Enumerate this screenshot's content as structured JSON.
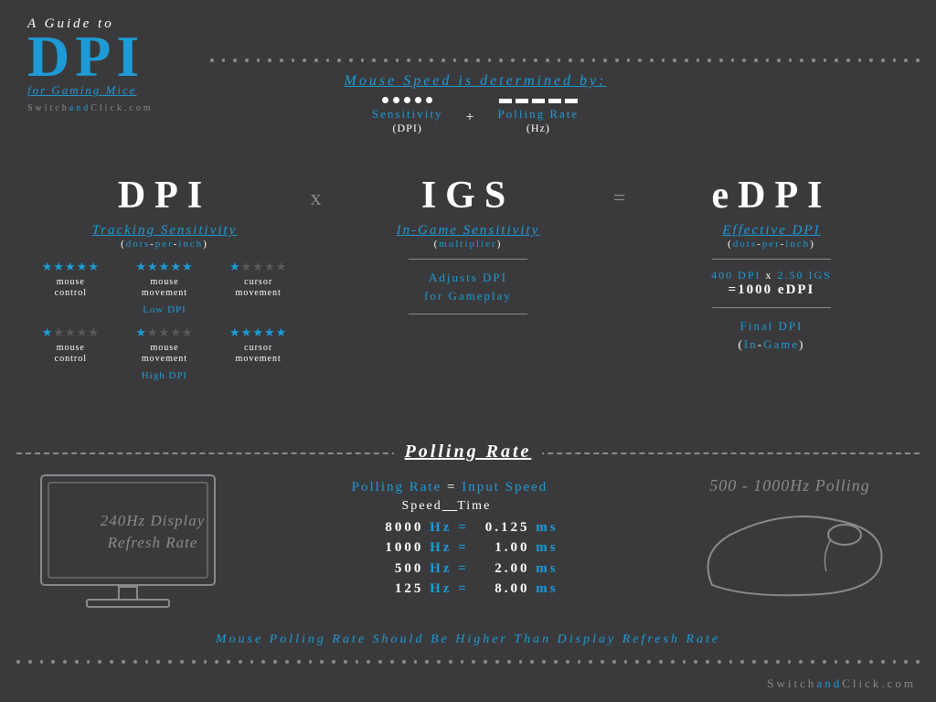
{
  "colors": {
    "bg": "#3a3a3c",
    "blue": "#1e9bd6",
    "gray": "#8a8a8d",
    "white": "#ffffff",
    "star_empty": "#5a5a5d"
  },
  "header": {
    "pre": "A Guide to",
    "title": "DPI",
    "sub": "for Gaming Mice",
    "site_a": "Switch",
    "site_b": "and",
    "site_c": "Click.com"
  },
  "mspeed": {
    "title": "Mouse Speed is determined by:",
    "left_label": "Sensitivity",
    "left_paren": "(DPI)",
    "plus": "+",
    "right_label": "Polling Rate",
    "right_paren": "(Hz)"
  },
  "formula": {
    "dpi": {
      "big": "DPI",
      "sub": "Tracking Sensitivity",
      "par_l": "(",
      "par_a": "dots",
      "par_s1": "-",
      "par_b": "per",
      "par_s2": "-",
      "par_c": "inch",
      "par_r": ")",
      "grid": {
        "row1": [
          {
            "filled": 5,
            "empty": 0,
            "t1": "mouse",
            "t2": "control"
          },
          {
            "filled": 5,
            "empty": 0,
            "t1": "mouse",
            "t2": "movement"
          },
          {
            "filled": 1,
            "empty": 4,
            "t1": "cursor",
            "t2": "movement"
          }
        ],
        "label1": "Low DPI",
        "row2": [
          {
            "filled": 1,
            "empty": 4,
            "t1": "mouse",
            "t2": "control"
          },
          {
            "filled": 1,
            "empty": 4,
            "t1": "mouse",
            "t2": "movement"
          },
          {
            "filled": 5,
            "empty": 0,
            "t1": "cursor",
            "t2": "movement"
          }
        ],
        "label2": "High DPI"
      }
    },
    "op1": "x",
    "igs": {
      "big": "IGS",
      "sub": "In-Game Sensitivity",
      "par": "(",
      "par_a": "multiplier",
      "par_r": ")",
      "desc1": "Adjusts DPI",
      "desc2": "for Gameplay"
    },
    "op2": "=",
    "edpi": {
      "big": "eDPI",
      "sub": "Effective DPI",
      "par_l": "(",
      "par_a": "dots",
      "par_s1": "-",
      "par_b": "per",
      "par_s2": "-",
      "par_c": "inch",
      "par_r": ")",
      "calc_a": "400 DPI",
      "calc_x": "x",
      "calc_b": "2.50 IGS",
      "calc_eq": "=",
      "calc_r": "1000 eDPI",
      "final1": "Final DPI",
      "final2_l": "(",
      "final2_a": "In",
      "final2_s": "-",
      "final2_b": "Game",
      "final2_r": ")"
    }
  },
  "polling": {
    "title": "Polling Rate",
    "monitor": "240Hz Display Refresh Rate",
    "eq_a": "Polling Rate",
    "eq_op": "=",
    "eq_b": "Input Speed",
    "h1": "Speed",
    "h2": "Time",
    "rows": [
      {
        "hz": "8000",
        "u": "Hz",
        "eq": "=",
        "ms": "0.125",
        "mu": "ms"
      },
      {
        "hz": "1000",
        "u": "Hz",
        "eq": "=",
        "ms": "1.00",
        "mu": "ms"
      },
      {
        "hz": "500",
        "u": "Hz",
        "eq": "=",
        "ms": "2.00",
        "mu": "ms"
      },
      {
        "hz": "125",
        "u": "Hz",
        "eq": "=",
        "ms": "8.00",
        "mu": "ms"
      }
    ],
    "mouse_label": "500 - 1000Hz Polling"
  },
  "bottom_msg": "Mouse Polling Rate Should Be Higher Than Display Refresh Rate",
  "footer": {
    "a": "Switch",
    "b": "and",
    "c": "Click.com"
  }
}
